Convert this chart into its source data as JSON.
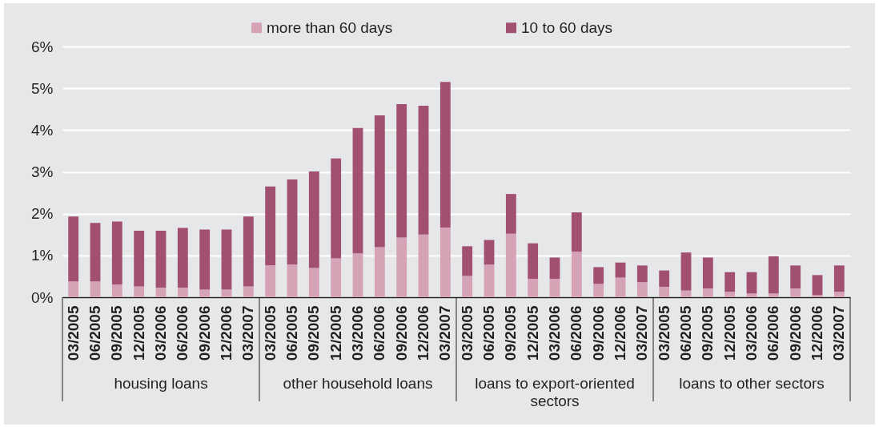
{
  "chart_data": {
    "type": "bar",
    "stacked": true,
    "categories": [
      "03/2005",
      "06/2005",
      "09/2005",
      "12/2005",
      "03/2006",
      "06/2006",
      "09/2006",
      "12/2006",
      "03/2007",
      "03/2005",
      "06/2005",
      "09/2005",
      "12/2005",
      "03/2006",
      "06/2006",
      "09/2006",
      "12/2006",
      "03/2007",
      "03/2005",
      "06/2005",
      "09/2005",
      "12/2005",
      "03/2006",
      "06/2006",
      "09/2006",
      "12/2006",
      "03/2007",
      "03/2005",
      "06/2005",
      "09/2005",
      "12/2005",
      "03/2006",
      "06/2006",
      "09/2006",
      "12/2006",
      "03/2007"
    ],
    "series": [
      {
        "name": "more than 60 days",
        "color": "#d5a2b6",
        "values": [
          0.38,
          0.38,
          0.3,
          0.26,
          0.23,
          0.23,
          0.18,
          0.18,
          0.26,
          0.76,
          0.78,
          0.7,
          0.93,
          1.05,
          1.2,
          1.43,
          1.5,
          1.67,
          0.51,
          0.78,
          1.52,
          0.44,
          0.44,
          1.09,
          0.32,
          0.47,
          0.36,
          0.25,
          0.16,
          0.21,
          0.13,
          0.09,
          0.09,
          0.21,
          0.05,
          0.13
        ]
      },
      {
        "name": "10 to 60 days",
        "color": "#a25072",
        "values": [
          1.55,
          1.4,
          1.51,
          1.33,
          1.36,
          1.43,
          1.44,
          1.44,
          1.67,
          1.89,
          2.04,
          2.31,
          2.39,
          3.0,
          3.15,
          3.19,
          3.08,
          3.48,
          0.71,
          0.59,
          0.95,
          0.85,
          0.51,
          0.94,
          0.4,
          0.36,
          0.4,
          0.39,
          0.91,
          0.74,
          0.47,
          0.51,
          0.89,
          0.55,
          0.48,
          0.63
        ]
      }
    ],
    "ylim": [
      0,
      6
    ],
    "yticks": [
      {
        "value": 0,
        "label": "0%"
      },
      {
        "value": 1,
        "label": "1%"
      },
      {
        "value": 2,
        "label": "2%"
      },
      {
        "value": 3,
        "label": "3%"
      },
      {
        "value": 4,
        "label": "4%"
      },
      {
        "value": 5,
        "label": "5%"
      },
      {
        "value": 6,
        "label": "6%"
      }
    ],
    "grid": "y",
    "legend": "top",
    "annotations": [
      "housing loans",
      "other household loans",
      "loans to export-oriented sectors",
      "loans to other sectors"
    ]
  }
}
